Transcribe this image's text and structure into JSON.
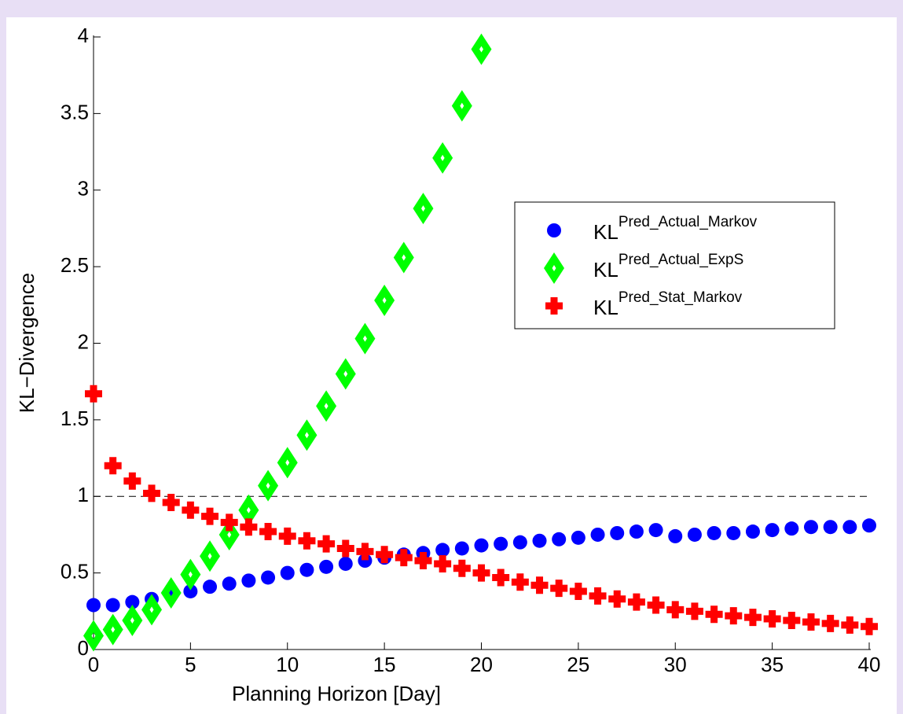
{
  "chart_data": {
    "type": "scatter",
    "xlabel": "Planning Horizon [Day]",
    "ylabel": "KL−Divergence",
    "xlim": [
      0,
      40
    ],
    "xticks": [
      0,
      5,
      10,
      15,
      20,
      25,
      30,
      35,
      40
    ],
    "ylim": [
      0,
      4
    ],
    "yticks": [
      0,
      0.5,
      1,
      1.5,
      2,
      2.5,
      3,
      3.5,
      4
    ],
    "reference_line": 1,
    "legend": "upper right",
    "series": [
      {
        "name": "KL",
        "superscript": "Pred_Actual_Markov",
        "marker": "circle",
        "color": "#0000ff",
        "x": [
          0,
          1,
          2,
          3,
          4,
          5,
          6,
          7,
          8,
          9,
          10,
          11,
          12,
          13,
          14,
          15,
          16,
          17,
          18,
          19,
          20,
          21,
          22,
          23,
          24,
          25,
          26,
          27,
          28,
          29,
          30,
          31,
          32,
          33,
          34,
          35,
          36,
          37,
          38,
          39,
          40
        ],
        "values": [
          0.29,
          0.29,
          0.31,
          0.33,
          0.36,
          0.38,
          0.41,
          0.43,
          0.45,
          0.47,
          0.5,
          0.52,
          0.54,
          0.56,
          0.58,
          0.6,
          0.62,
          0.63,
          0.65,
          0.66,
          0.68,
          0.69,
          0.7,
          0.71,
          0.72,
          0.73,
          0.75,
          0.76,
          0.77,
          0.78,
          0.74,
          0.75,
          0.76,
          0.76,
          0.77,
          0.78,
          0.79,
          0.8,
          0.8,
          0.8,
          0.81
        ]
      },
      {
        "name": "KL",
        "superscript": "Pred_Actual_ExpS",
        "marker": "diamond",
        "color": "#00ff00",
        "x": [
          0,
          1,
          2,
          3,
          4,
          5,
          6,
          7,
          8,
          9,
          10,
          11,
          12,
          13,
          14,
          15,
          16,
          17,
          18,
          19,
          20
        ],
        "values": [
          0.09,
          0.13,
          0.19,
          0.26,
          0.37,
          0.49,
          0.61,
          0.75,
          0.91,
          1.07,
          1.22,
          1.4,
          1.59,
          1.8,
          2.03,
          2.28,
          2.56,
          2.88,
          3.21,
          3.55,
          3.92
        ]
      },
      {
        "name": "KL",
        "superscript": "Pred_Stat_Markov",
        "marker": "plus",
        "color": "#ff0000",
        "x": [
          0,
          1,
          2,
          3,
          4,
          5,
          6,
          7,
          8,
          9,
          10,
          11,
          12,
          13,
          14,
          15,
          16,
          17,
          18,
          19,
          20,
          21,
          22,
          23,
          24,
          25,
          26,
          27,
          28,
          29,
          30,
          31,
          32,
          33,
          34,
          35,
          36,
          37,
          38,
          39,
          40
        ],
        "values": [
          1.67,
          1.2,
          1.1,
          1.02,
          0.96,
          0.91,
          0.87,
          0.83,
          0.8,
          0.77,
          0.74,
          0.71,
          0.69,
          0.66,
          0.64,
          0.62,
          0.6,
          0.58,
          0.56,
          0.53,
          0.5,
          0.47,
          0.44,
          0.42,
          0.4,
          0.38,
          0.35,
          0.33,
          0.31,
          0.29,
          0.26,
          0.25,
          0.23,
          0.22,
          0.21,
          0.2,
          0.19,
          0.18,
          0.17,
          0.16,
          0.15
        ]
      }
    ]
  }
}
